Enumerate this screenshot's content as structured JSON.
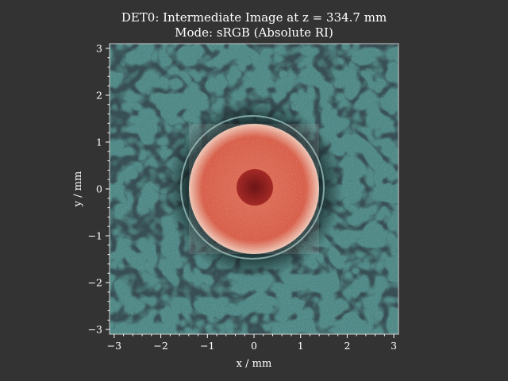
{
  "chart_data": {
    "type": "heatmap",
    "title": "DET0: Intermediate Image at z = 334.7 mm",
    "subtitle": "Mode: sRGB (Absolute RI)",
    "xlabel": "x / mm",
    "ylabel": "y / mm",
    "xlim": [
      -3.1,
      3.1
    ],
    "ylim": [
      -3.1,
      3.1
    ],
    "xticks": [
      -3,
      -2,
      -1,
      0,
      1,
      2,
      3
    ],
    "yticks": [
      -3,
      -2,
      -1,
      0,
      1,
      2,
      3
    ],
    "xtick_labels": [
      "−3",
      "−2",
      "−1",
      "0",
      "1",
      "2",
      "3"
    ],
    "ytick_labels": [
      "−3",
      "−2",
      "−1",
      "0",
      "1",
      "2",
      "3"
    ],
    "grid": false,
    "image_description_colors": {
      "background_teal": "#4f8a88",
      "dark_holes": "#0c1416",
      "disk_red": "#d9604a",
      "disk_core": "#8a1e1e",
      "ring_light": "#a8d0cc"
    }
  }
}
